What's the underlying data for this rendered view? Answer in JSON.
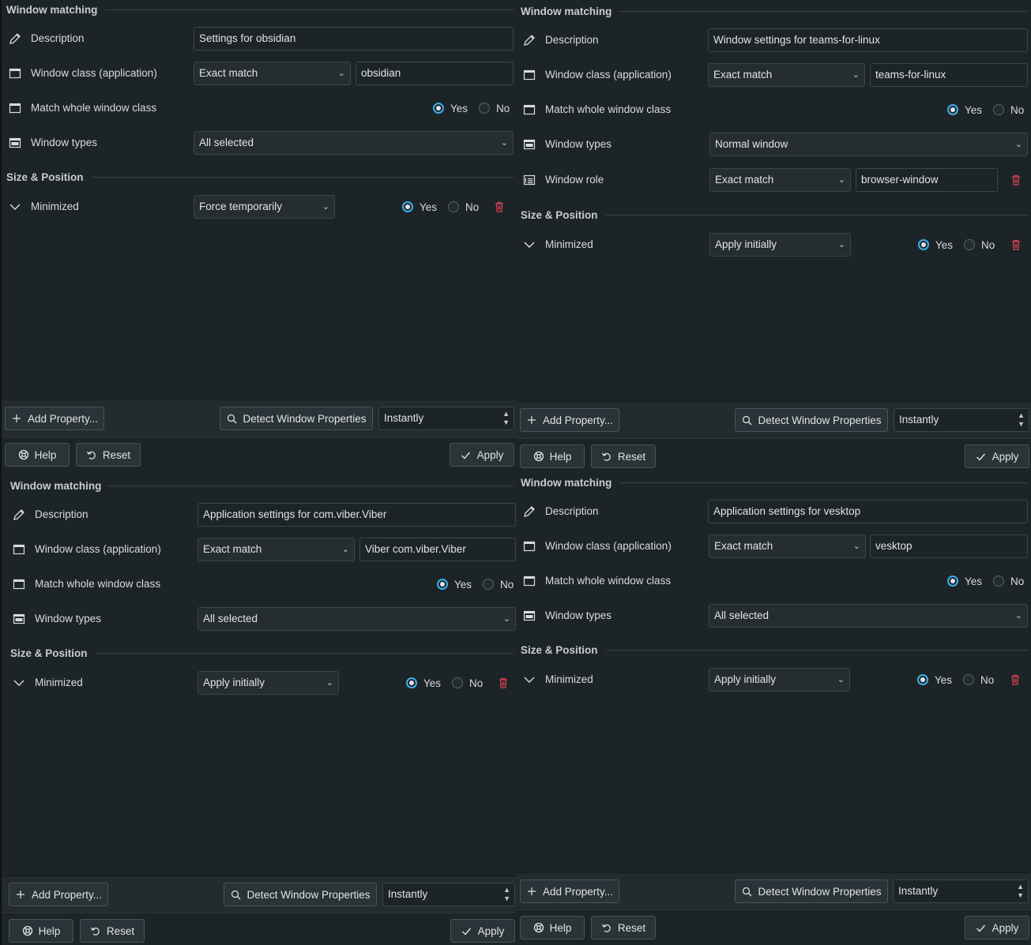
{
  "colors": {
    "background": "#1c2428",
    "accent": "#3daee9",
    "delete": "#da4453"
  },
  "labels": {
    "window_matching": "Window matching",
    "size_position": "Size & Position",
    "description": "Description",
    "window_class": "Window class (application)",
    "match_whole": "Match whole window class",
    "window_types": "Window types",
    "window_role": "Window role",
    "minimized": "Minimized",
    "yes": "Yes",
    "no": "No",
    "add_property": "Add Property...",
    "detect": "Detect Window Properties",
    "help": "Help",
    "reset": "Reset",
    "apply": "Apply"
  },
  "icons": {
    "description": "pencil-icon",
    "window_class": "window-icon",
    "match_whole": "window-icon",
    "window_types": "window-types-icon",
    "window_role": "window-role-icon",
    "minimized": "chevron-down-icon",
    "delete": "trash-icon",
    "add": "plus-icon",
    "detect": "search-icon",
    "help": "lifebuoy-icon",
    "reset": "undo-icon",
    "apply": "checkmark-icon"
  },
  "panels": [
    {
      "description": "Settings for obsidian",
      "class_match": "Exact match",
      "class_value": "obsidian",
      "match_whole": "yes",
      "window_types": "All selected",
      "minimized_policy": "Force temporarily",
      "minimized_value": "yes",
      "detect_delay": "Instantly"
    },
    {
      "description": "Window settings for teams-for-linux",
      "class_match": "Exact match",
      "class_value": "teams-for-linux",
      "match_whole": "yes",
      "window_types": "Normal window",
      "role_match": "Exact match",
      "role_value": "browser-window",
      "minimized_policy": "Apply initially",
      "minimized_value": "yes",
      "detect_delay": "Instantly"
    },
    {
      "description": "Application settings for com.viber.Viber",
      "class_match": "Exact match",
      "class_value": "Viber com.viber.Viber",
      "match_whole": "yes",
      "window_types": "All selected",
      "minimized_policy": "Apply initially",
      "minimized_value": "yes",
      "detect_delay": "Instantly"
    },
    {
      "description": "Application settings for vesktop",
      "class_match": "Exact match",
      "class_value": "vesktop",
      "match_whole": "yes",
      "window_types": "All selected",
      "minimized_policy": "Apply initially",
      "minimized_value": "yes",
      "detect_delay": "Instantly"
    }
  ]
}
